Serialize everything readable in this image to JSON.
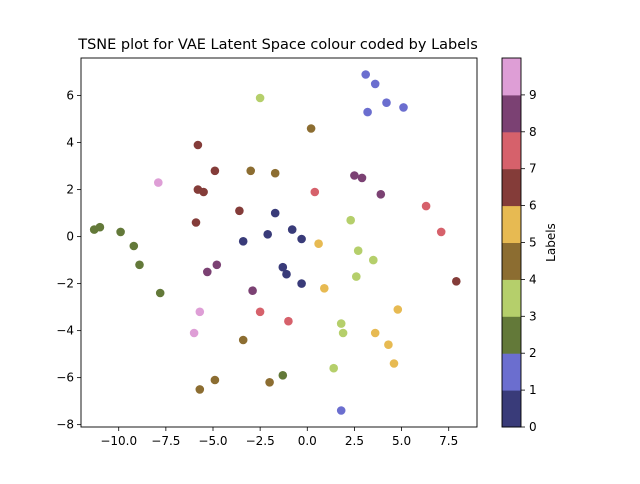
{
  "chart_data": {
    "type": "scatter",
    "title": "TSNE plot for VAE Latent Space colour coded by Labels",
    "xlabel": "",
    "ylabel": "",
    "xlim": [
      -12.0,
      9.0
    ],
    "ylim": [
      -8.1,
      7.6
    ],
    "xticks": [
      -10.0,
      -7.5,
      -5.0,
      -2.5,
      0.0,
      2.5,
      5.0,
      7.5
    ],
    "xtick_labels": [
      "−10.0",
      "−7.5",
      "−5.0",
      "−2.5",
      "0.0",
      "2.5",
      "5.0",
      "7.5"
    ],
    "yticks": [
      -8,
      -6,
      -4,
      -2,
      0,
      2,
      4,
      6
    ],
    "ytick_labels": [
      "−8",
      "−6",
      "−4",
      "−2",
      "0",
      "2",
      "4",
      "6"
    ],
    "grid": false,
    "colorbar": {
      "label": "Labels",
      "range": [
        0,
        10
      ],
      "ticks": [
        0,
        1,
        2,
        3,
        4,
        5,
        6,
        7,
        8,
        9
      ],
      "tick_labels": [
        "0",
        "1",
        "2",
        "3",
        "4",
        "5",
        "6",
        "7",
        "8",
        "9"
      ],
      "colors": [
        "#393b79",
        "#6b6ecf",
        "#637939",
        "#b5cf6b",
        "#8c6d31",
        "#e7ba52",
        "#843c39",
        "#d6616b",
        "#7b4173",
        "#de9ed6"
      ]
    },
    "points": [
      {
        "x": 3.1,
        "y": 6.9,
        "label": 1
      },
      {
        "x": 3.6,
        "y": 6.5,
        "label": 1
      },
      {
        "x": 4.2,
        "y": 5.7,
        "label": 1
      },
      {
        "x": 5.1,
        "y": 5.5,
        "label": 1
      },
      {
        "x": 3.2,
        "y": 5.3,
        "label": 1
      },
      {
        "x": 1.8,
        "y": -7.4,
        "label": 1
      },
      {
        "x": -2.5,
        "y": 5.9,
        "label": 3
      },
      {
        "x": 0.2,
        "y": 4.6,
        "label": 4
      },
      {
        "x": -5.8,
        "y": 3.9,
        "label": 6
      },
      {
        "x": -4.9,
        "y": 2.8,
        "label": 6
      },
      {
        "x": -5.8,
        "y": 2.0,
        "label": 6
      },
      {
        "x": -5.5,
        "y": 1.9,
        "label": 6
      },
      {
        "x": -3.6,
        "y": 1.1,
        "label": 6
      },
      {
        "x": -5.9,
        "y": 0.6,
        "label": 6
      },
      {
        "x": 7.9,
        "y": -1.9,
        "label": 6
      },
      {
        "x": -3.0,
        "y": 2.8,
        "label": 4
      },
      {
        "x": -1.7,
        "y": 2.7,
        "label": 4
      },
      {
        "x": 0.4,
        "y": 1.9,
        "label": 7
      },
      {
        "x": 2.5,
        "y": 2.6,
        "label": 8
      },
      {
        "x": 2.9,
        "y": 2.5,
        "label": 8
      },
      {
        "x": 3.9,
        "y": 1.8,
        "label": 8
      },
      {
        "x": 6.3,
        "y": 1.3,
        "label": 7
      },
      {
        "x": 7.1,
        "y": 0.2,
        "label": 7
      },
      {
        "x": -7.9,
        "y": 2.3,
        "label": 9
      },
      {
        "x": -11.3,
        "y": 0.3,
        "label": 2
      },
      {
        "x": -11.0,
        "y": 0.4,
        "label": 2
      },
      {
        "x": -9.9,
        "y": 0.2,
        "label": 2
      },
      {
        "x": -9.2,
        "y": -0.4,
        "label": 2
      },
      {
        "x": -8.9,
        "y": -1.2,
        "label": 2
      },
      {
        "x": -7.8,
        "y": -2.4,
        "label": 2
      },
      {
        "x": -1.7,
        "y": 1.0,
        "label": 0
      },
      {
        "x": -0.8,
        "y": 0.3,
        "label": 0
      },
      {
        "x": -2.1,
        "y": 0.1,
        "label": 0
      },
      {
        "x": -0.3,
        "y": -0.1,
        "label": 0
      },
      {
        "x": -3.4,
        "y": -0.2,
        "label": 0
      },
      {
        "x": -1.3,
        "y": -1.3,
        "label": 0
      },
      {
        "x": -1.1,
        "y": -1.6,
        "label": 0
      },
      {
        "x": -0.3,
        "y": -2.0,
        "label": 0
      },
      {
        "x": -5.3,
        "y": -1.5,
        "label": 8
      },
      {
        "x": -4.8,
        "y": -1.2,
        "label": 8
      },
      {
        "x": -2.9,
        "y": -2.3,
        "label": 8
      },
      {
        "x": 0.6,
        "y": -0.3,
        "label": 5
      },
      {
        "x": 0.9,
        "y": -2.2,
        "label": 5
      },
      {
        "x": 2.3,
        "y": 0.7,
        "label": 3
      },
      {
        "x": 2.7,
        "y": -0.6,
        "label": 3
      },
      {
        "x": 3.5,
        "y": -1.0,
        "label": 3
      },
      {
        "x": 2.6,
        "y": -1.7,
        "label": 3
      },
      {
        "x": 1.8,
        "y": -3.7,
        "label": 3
      },
      {
        "x": 1.9,
        "y": -4.1,
        "label": 3
      },
      {
        "x": 1.4,
        "y": -5.6,
        "label": 3
      },
      {
        "x": 4.8,
        "y": -3.1,
        "label": 5
      },
      {
        "x": 3.6,
        "y": -4.1,
        "label": 5
      },
      {
        "x": 4.3,
        "y": -4.6,
        "label": 5
      },
      {
        "x": 4.6,
        "y": -5.4,
        "label": 5
      },
      {
        "x": -5.7,
        "y": -3.2,
        "label": 9
      },
      {
        "x": -6.0,
        "y": -4.1,
        "label": 9
      },
      {
        "x": -2.5,
        "y": -3.2,
        "label": 7
      },
      {
        "x": -1.0,
        "y": -3.6,
        "label": 7
      },
      {
        "x": -3.4,
        "y": -4.4,
        "label": 4
      },
      {
        "x": -4.9,
        "y": -6.1,
        "label": 4
      },
      {
        "x": -5.7,
        "y": -6.5,
        "label": 4
      },
      {
        "x": -2.0,
        "y": -6.2,
        "label": 4
      },
      {
        "x": -1.3,
        "y": -5.9,
        "label": 2
      }
    ]
  }
}
